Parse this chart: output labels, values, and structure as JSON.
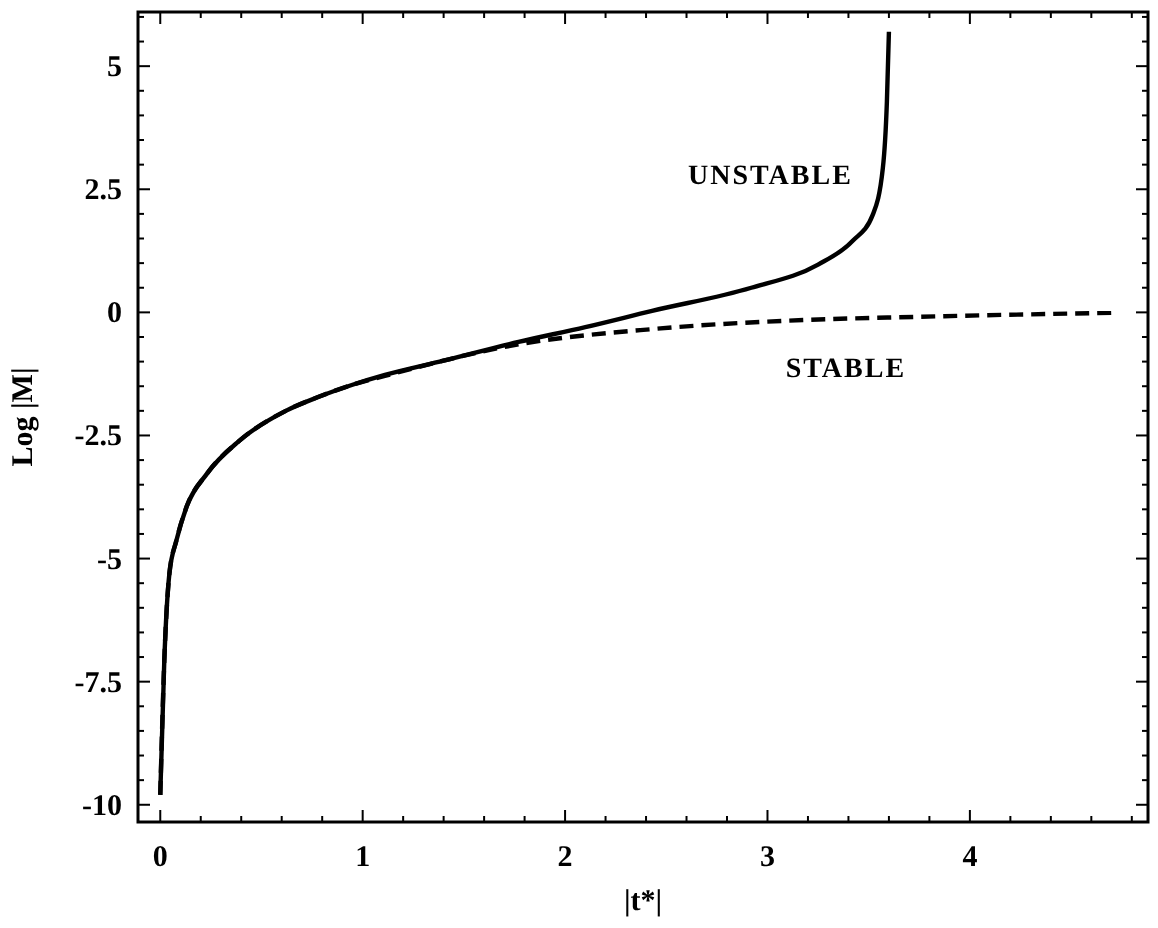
{
  "chart_data": {
    "type": "line",
    "xlabel": "|t*|",
    "ylabel": "Log |M|",
    "xlim": [
      -0.11,
      4.88
    ],
    "ylim": [
      -10.35,
      6.1
    ],
    "xticks": [
      0,
      {
        "value": 0.2,
        "label": null
      },
      {
        "value": 0.4,
        "label": null
      },
      {
        "value": 0.6,
        "label": null
      },
      {
        "value": 0.8,
        "label": null
      },
      1,
      {
        "value": 1.2,
        "label": null
      },
      {
        "value": 1.4,
        "label": null
      },
      {
        "value": 1.6,
        "label": null
      },
      {
        "value": 1.8,
        "label": null
      },
      2,
      {
        "value": 2.2,
        "label": null
      },
      {
        "value": 2.4,
        "label": null
      },
      {
        "value": 2.6,
        "label": null
      },
      {
        "value": 2.8,
        "label": null
      },
      3,
      {
        "value": 3.2,
        "label": null
      },
      {
        "value": 3.4,
        "label": null
      },
      {
        "value": 3.6,
        "label": null
      },
      {
        "value": 3.8,
        "label": null
      },
      4,
      {
        "value": 4.2,
        "label": null
      },
      {
        "value": 4.4,
        "label": null
      },
      {
        "value": 4.6,
        "label": null
      },
      {
        "value": 4.8,
        "label": null
      }
    ],
    "yticks": [
      -10,
      {
        "value": -9.5,
        "label": null
      },
      {
        "value": -9,
        "label": null
      },
      {
        "value": -8.5,
        "label": null
      },
      {
        "value": -8,
        "label": null
      },
      -7.5,
      {
        "value": -7,
        "label": null
      },
      {
        "value": -6.5,
        "label": null
      },
      {
        "value": -6,
        "label": null
      },
      {
        "value": -5.5,
        "label": null
      },
      -5,
      {
        "value": -4.5,
        "label": null
      },
      {
        "value": -4,
        "label": null
      },
      {
        "value": -3.5,
        "label": null
      },
      {
        "value": -3,
        "label": null
      },
      -2.5,
      {
        "value": -2,
        "label": null
      },
      {
        "value": -1.5,
        "label": null
      },
      {
        "value": -1,
        "label": null
      },
      {
        "value": -0.5,
        "label": null
      },
      0,
      {
        "value": 0.5,
        "label": null
      },
      {
        "value": 1,
        "label": null
      },
      {
        "value": 1.5,
        "label": null
      },
      {
        "value": 2,
        "label": null
      },
      2.5,
      {
        "value": 3,
        "label": null
      },
      {
        "value": 3.5,
        "label": null
      },
      {
        "value": 4,
        "label": null
      },
      {
        "value": 4.5,
        "label": null
      },
      5,
      {
        "value": 5.5,
        "label": null
      },
      {
        "value": 6,
        "label": null
      }
    ],
    "marker": "none",
    "series": [
      {
        "name": "UNSTABLE",
        "color": "#000000",
        "line_style": "solid",
        "x": [
          0.0,
          0.02,
          0.045,
          0.08,
          0.13,
          0.23,
          0.39,
          0.62,
          0.78,
          0.95,
          1.11,
          1.4,
          1.77,
          2.1,
          2.43,
          2.92,
          3.25,
          3.42,
          3.52,
          3.57,
          3.59,
          3.6
        ],
        "values": [
          -9.8,
          -7.06,
          -5.31,
          -4.63,
          -3.95,
          -3.28,
          -2.61,
          -2.0,
          -1.72,
          -1.47,
          -1.27,
          -0.98,
          -0.6,
          -0.3,
          0.03,
          0.5,
          0.97,
          1.45,
          1.98,
          2.93,
          4.28,
          5.7
        ]
      },
      {
        "name": "STABLE",
        "color": "#000000",
        "line_style": "dashed",
        "x": [
          0.0,
          0.02,
          0.045,
          0.08,
          0.13,
          0.23,
          0.39,
          0.62,
          0.78,
          0.95,
          1.11,
          1.77,
          2.43,
          3.09,
          3.75,
          4.7
        ],
        "values": [
          -9.8,
          -7.06,
          -5.31,
          -4.63,
          -3.95,
          -3.28,
          -2.61,
          -2.0,
          -1.72,
          -1.47,
          -1.29,
          -0.65,
          -0.34,
          -0.17,
          -0.09,
          -0.01
        ]
      }
    ]
  }
}
